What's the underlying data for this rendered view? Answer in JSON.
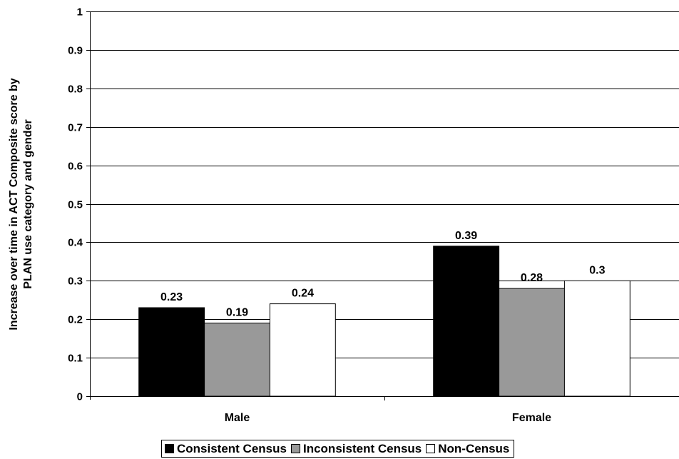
{
  "chart_data": {
    "type": "bar",
    "title": "",
    "xlabel": "",
    "ylabel": "Increase over time in ACT Composite score by PLAN use category and gender",
    "ylabel_lines": [
      "Increase over time in ACT Composite score by",
      "PLAN use category and gender"
    ],
    "categories": [
      "Male",
      "Female"
    ],
    "ylim": [
      0,
      1
    ],
    "yticks": [
      0,
      0.1,
      0.2,
      0.3,
      0.4,
      0.5,
      0.6,
      0.7,
      0.8,
      0.9,
      1
    ],
    "ytick_labels": [
      "0",
      "0.1",
      "0.2",
      "0.3",
      "0.4",
      "0.5",
      "0.6",
      "0.7",
      "0.8",
      "0.9",
      "1"
    ],
    "grid": true,
    "legend_position": "bottom",
    "series": [
      {
        "name": "Consistent Census",
        "values": [
          0.23,
          0.39
        ],
        "labels": [
          "0.23",
          "0.39"
        ],
        "color": "#000000"
      },
      {
        "name": "Inconsistent Census",
        "values": [
          0.19,
          0.28
        ],
        "labels": [
          "0.19",
          "0.28"
        ],
        "color": "#999999"
      },
      {
        "name": "Non-Census",
        "values": [
          0.24,
          0.3
        ],
        "labels": [
          "0.24",
          "0.3"
        ],
        "color": "#ffffff"
      }
    ]
  }
}
